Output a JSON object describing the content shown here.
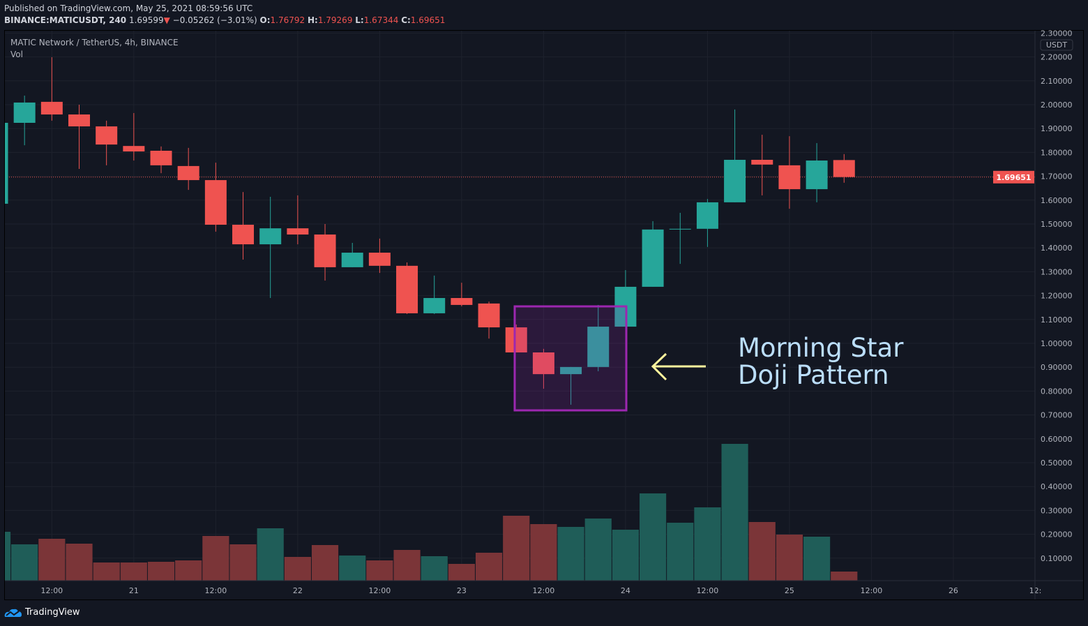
{
  "header": {
    "published": "Published on TradingView.com, May 25, 2021 08:59:56 UTC",
    "symbol": "BINANCE:MATICUSDT, 240",
    "last": "1.69599",
    "change_arrow": "down-triangle-icon",
    "change": "−0.05262 (−3.01%)",
    "o_label": "O:",
    "o": "1.76792",
    "h_label": "H:",
    "h": "1.79269",
    "l_label": "L:",
    "l": "1.67344",
    "c_label": "C:",
    "c": "1.69651"
  },
  "legend": {
    "title": "MATIC Network / TetherUS, 4h, BINANCE",
    "vol": "Vol"
  },
  "footer": {
    "logo_icon": "tradingview-cloud-icon",
    "brand": "TradingView"
  },
  "colors": {
    "up": "#26a69a",
    "down": "#ef5350",
    "up_vol": "#1f5d58",
    "down_vol": "#7b3538",
    "background": "#131722",
    "highlight": "#9c27b0",
    "arrow": "#fff59d",
    "annotation": "#bbdefb"
  },
  "chart_data": {
    "type": "candlestick",
    "currency": "USDT",
    "ylim": [
      0.0,
      2.3
    ],
    "y_ticks": [
      "2.30000",
      "2.20000",
      "2.10000",
      "2.00000",
      "1.90000",
      "1.80000",
      "1.70000",
      "1.60000",
      "1.50000",
      "1.40000",
      "1.30000",
      "1.20000",
      "1.10000",
      "1.00000",
      "0.90000",
      "0.80000",
      "0.70000",
      "0.60000",
      "0.50000",
      "0.40000",
      "0.30000",
      "0.20000",
      "0.10000"
    ],
    "x_ticks": [
      "12:00",
      "21",
      "12:00",
      "22",
      "12:00",
      "23",
      "12:00",
      "24",
      "12:00",
      "25",
      "12:00",
      "26",
      "12:"
    ],
    "last_price_label": "1.69651",
    "last_price": 1.69651,
    "grid": true,
    "candles": [
      {
        "o": 1.585,
        "h": 1.93,
        "l": 1.58,
        "c": 1.924,
        "v": 70
      },
      {
        "o": 1.924,
        "h": 2.038,
        "l": 1.83,
        "c": 2.009,
        "v": 52
      },
      {
        "o": 2.012,
        "h": 2.199,
        "l": 1.933,
        "c": 1.959,
        "v": 60
      },
      {
        "o": 1.959,
        "h": 2.0,
        "l": 1.731,
        "c": 1.909,
        "v": 53
      },
      {
        "o": 1.909,
        "h": 1.933,
        "l": 1.746,
        "c": 1.833,
        "v": 26
      },
      {
        "o": 1.827,
        "h": 1.965,
        "l": 1.766,
        "c": 1.804,
        "v": 26
      },
      {
        "o": 1.807,
        "h": 1.825,
        "l": 1.713,
        "c": 1.746,
        "v": 27
      },
      {
        "o": 1.743,
        "h": 1.819,
        "l": 1.643,
        "c": 1.684,
        "v": 29
      },
      {
        "o": 1.684,
        "h": 1.757,
        "l": 1.468,
        "c": 1.497,
        "v": 64
      },
      {
        "o": 1.497,
        "h": 1.634,
        "l": 1.351,
        "c": 1.415,
        "v": 52
      },
      {
        "o": 1.415,
        "h": 1.614,
        "l": 1.19,
        "c": 1.482,
        "v": 75
      },
      {
        "o": 1.482,
        "h": 1.62,
        "l": 1.415,
        "c": 1.456,
        "v": 34
      },
      {
        "o": 1.456,
        "h": 1.5,
        "l": 1.263,
        "c": 1.319,
        "v": 51
      },
      {
        "o": 1.319,
        "h": 1.421,
        "l": 1.319,
        "c": 1.38,
        "v": 36
      },
      {
        "o": 1.38,
        "h": 1.439,
        "l": 1.295,
        "c": 1.325,
        "v": 29
      },
      {
        "o": 1.325,
        "h": 1.339,
        "l": 1.123,
        "c": 1.126,
        "v": 44
      },
      {
        "o": 1.126,
        "h": 1.284,
        "l": 1.123,
        "c": 1.19,
        "v": 35
      },
      {
        "o": 1.19,
        "h": 1.254,
        "l": 1.155,
        "c": 1.161,
        "v": 24
      },
      {
        "o": 1.167,
        "h": 1.175,
        "l": 1.02,
        "c": 1.067,
        "v": 40
      },
      {
        "o": 1.067,
        "h": 1.079,
        "l": 0.962,
        "c": 0.962,
        "v": 93
      },
      {
        "o": 0.962,
        "h": 0.977,
        "l": 0.81,
        "c": 0.871,
        "v": 81
      },
      {
        "o": 0.871,
        "h": 0.901,
        "l": 0.743,
        "c": 0.901,
        "v": 77
      },
      {
        "o": 0.901,
        "h": 1.161,
        "l": 0.883,
        "c": 1.07,
        "v": 89
      },
      {
        "o": 1.07,
        "h": 1.307,
        "l": 1.07,
        "c": 1.237,
        "v": 73
      },
      {
        "o": 1.237,
        "h": 1.512,
        "l": 1.237,
        "c": 1.477,
        "v": 125
      },
      {
        "o": 1.477,
        "h": 1.547,
        "l": 1.333,
        "c": 1.48,
        "v": 83
      },
      {
        "o": 1.48,
        "h": 1.605,
        "l": 1.404,
        "c": 1.591,
        "v": 105
      },
      {
        "o": 1.591,
        "h": 1.98,
        "l": 1.591,
        "c": 1.769,
        "v": 196
      },
      {
        "o": 1.769,
        "h": 1.874,
        "l": 1.62,
        "c": 1.749,
        "v": 84
      },
      {
        "o": 1.746,
        "h": 1.868,
        "l": 1.564,
        "c": 1.646,
        "v": 66
      },
      {
        "o": 1.646,
        "h": 1.839,
        "l": 1.591,
        "c": 1.766,
        "v": 63
      },
      {
        "o": 1.768,
        "h": 1.793,
        "l": 1.673,
        "c": 1.697,
        "v": 13
      }
    ],
    "annotation": {
      "line1": "Morning Star",
      "line2": "Doji Pattern",
      "highlighted_candles": [
        19,
        22
      ]
    }
  }
}
